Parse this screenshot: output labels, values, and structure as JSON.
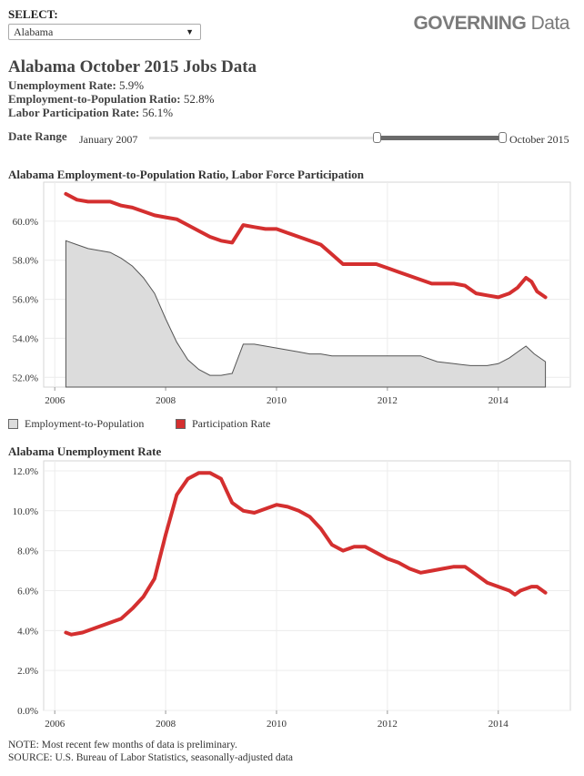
{
  "selector": {
    "label": "SELECT:",
    "value": "Alabama"
  },
  "brand": {
    "bold": "GOVERNING",
    "normal": " Data"
  },
  "title": "Alabama October 2015 Jobs Data",
  "stats": [
    {
      "label": "Unemployment Rate:",
      "value": "5.9%"
    },
    {
      "label": "Employment-to-Population Ratio:",
      "value": "52.8%"
    },
    {
      "label": "Labor Participation Rate:",
      "value": "56.1%"
    }
  ],
  "date_range": {
    "label": "Date Range",
    "start": "January 2007",
    "end": "October 2015",
    "selected_fraction": [
      0.64,
      1.0
    ]
  },
  "colors": {
    "participation": "#d42f2f",
    "employment_fill": "#dcdcdc",
    "employment_line": "#555555"
  },
  "chart_data": [
    {
      "type": "area",
      "title": "Alabama Employment-to-Population Ratio, Labor Force Participation",
      "xlabel": "",
      "ylabel": "",
      "xlim": [
        2005.8,
        2015.3
      ],
      "ylim": [
        51.5,
        62.0
      ],
      "xticks": [
        2006,
        2008,
        2010,
        2012,
        2014
      ],
      "xtick_labels": [
        "2006",
        "2008",
        "2010",
        "2012",
        "2014"
      ],
      "yticks": [
        52,
        54,
        56,
        58,
        60
      ],
      "ytick_labels": [
        "52.0%",
        "54.0%",
        "56.0%",
        "58.0%",
        "60.0%"
      ],
      "grid": true,
      "legend_position": "bottom-left",
      "series": [
        {
          "name": "Employment-to-Population",
          "kind": "area",
          "x": [
            2006.2,
            2006.4,
            2006.6,
            2006.8,
            2007.0,
            2007.2,
            2007.4,
            2007.6,
            2007.8,
            2008.0,
            2008.2,
            2008.4,
            2008.6,
            2008.8,
            2009.0,
            2009.2,
            2009.4,
            2009.6,
            2009.8,
            2010.0,
            2010.2,
            2010.4,
            2010.6,
            2010.8,
            2011.0,
            2011.4,
            2011.8,
            2012.2,
            2012.6,
            2012.9,
            2013.2,
            2013.5,
            2013.8,
            2014.0,
            2014.2,
            2014.35,
            2014.5,
            2014.65,
            2014.85
          ],
          "values": [
            59.0,
            58.8,
            58.6,
            58.5,
            58.4,
            58.1,
            57.7,
            57.1,
            56.3,
            55.0,
            53.8,
            52.9,
            52.4,
            52.1,
            52.1,
            52.2,
            53.7,
            53.7,
            53.6,
            53.5,
            53.4,
            53.3,
            53.2,
            53.2,
            53.1,
            53.1,
            53.1,
            53.1,
            53.1,
            52.8,
            52.7,
            52.6,
            52.6,
            52.7,
            53.0,
            53.3,
            53.6,
            53.2,
            52.8
          ]
        },
        {
          "name": "Participation Rate",
          "kind": "line",
          "x": [
            2006.2,
            2006.4,
            2006.6,
            2006.8,
            2007.0,
            2007.2,
            2007.4,
            2007.6,
            2007.8,
            2008.0,
            2008.2,
            2008.4,
            2008.6,
            2008.8,
            2009.0,
            2009.2,
            2009.4,
            2009.6,
            2009.8,
            2010.0,
            2010.2,
            2010.4,
            2010.6,
            2010.8,
            2011.0,
            2011.2,
            2011.4,
            2011.6,
            2011.8,
            2012.0,
            2012.2,
            2012.4,
            2012.6,
            2012.8,
            2013.0,
            2013.2,
            2013.4,
            2013.6,
            2013.8,
            2014.0,
            2014.2,
            2014.35,
            2014.5,
            2014.6,
            2014.7,
            2014.85
          ],
          "values": [
            61.4,
            61.1,
            61.0,
            61.0,
            61.0,
            60.8,
            60.7,
            60.5,
            60.3,
            60.2,
            60.1,
            59.8,
            59.5,
            59.2,
            59.0,
            58.9,
            59.8,
            59.7,
            59.6,
            59.6,
            59.4,
            59.2,
            59.0,
            58.8,
            58.3,
            57.8,
            57.8,
            57.8,
            57.8,
            57.6,
            57.4,
            57.2,
            57.0,
            56.8,
            56.8,
            56.8,
            56.7,
            56.3,
            56.2,
            56.1,
            56.3,
            56.6,
            57.1,
            56.9,
            56.4,
            56.1
          ]
        }
      ]
    },
    {
      "type": "line",
      "title": "Alabama Unemployment Rate",
      "xlabel": "",
      "ylabel": "",
      "xlim": [
        2005.8,
        2015.3
      ],
      "ylim": [
        0,
        12.5
      ],
      "xticks": [
        2006,
        2008,
        2010,
        2012,
        2014
      ],
      "xtick_labels": [
        "2006",
        "2008",
        "2010",
        "2012",
        "2014"
      ],
      "yticks": [
        0,
        2,
        4,
        6,
        8,
        10,
        12
      ],
      "ytick_labels": [
        "0.0%",
        "2.0%",
        "4.0%",
        "6.0%",
        "8.0%",
        "10.0%",
        "12.0%"
      ],
      "grid": true,
      "series": [
        {
          "x": [
            2006.2,
            2006.3,
            2006.5,
            2006.7,
            2007.0,
            2007.2,
            2007.4,
            2007.6,
            2007.8,
            2008.0,
            2008.2,
            2008.4,
            2008.6,
            2008.8,
            2009.0,
            2009.2,
            2009.4,
            2009.6,
            2009.8,
            2010.0,
            2010.2,
            2010.4,
            2010.6,
            2010.8,
            2011.0,
            2011.2,
            2011.4,
            2011.6,
            2011.8,
            2012.0,
            2012.2,
            2012.4,
            2012.6,
            2012.8,
            2013.0,
            2013.2,
            2013.4,
            2013.6,
            2013.8,
            2014.0,
            2014.2,
            2014.3,
            2014.4,
            2014.6,
            2014.7,
            2014.85
          ],
          "values": [
            3.9,
            3.8,
            3.9,
            4.1,
            4.4,
            4.6,
            5.1,
            5.7,
            6.6,
            8.8,
            10.8,
            11.6,
            11.9,
            11.9,
            11.6,
            10.4,
            10.0,
            9.9,
            10.1,
            10.3,
            10.2,
            10.0,
            9.7,
            9.1,
            8.3,
            8.0,
            8.2,
            8.2,
            7.9,
            7.6,
            7.4,
            7.1,
            6.9,
            7.0,
            7.1,
            7.2,
            7.2,
            6.8,
            6.4,
            6.2,
            6.0,
            5.8,
            6.0,
            6.2,
            6.2,
            5.9
          ]
        }
      ]
    }
  ],
  "legend": {
    "employment": "Employment-to-Population",
    "participation": "Participation Rate"
  },
  "notes": {
    "note": "NOTE: Most recent few months of data is preliminary.",
    "source": "SOURCE: U.S. Bureau of Labor Statistics, seasonally-adjusted data"
  }
}
